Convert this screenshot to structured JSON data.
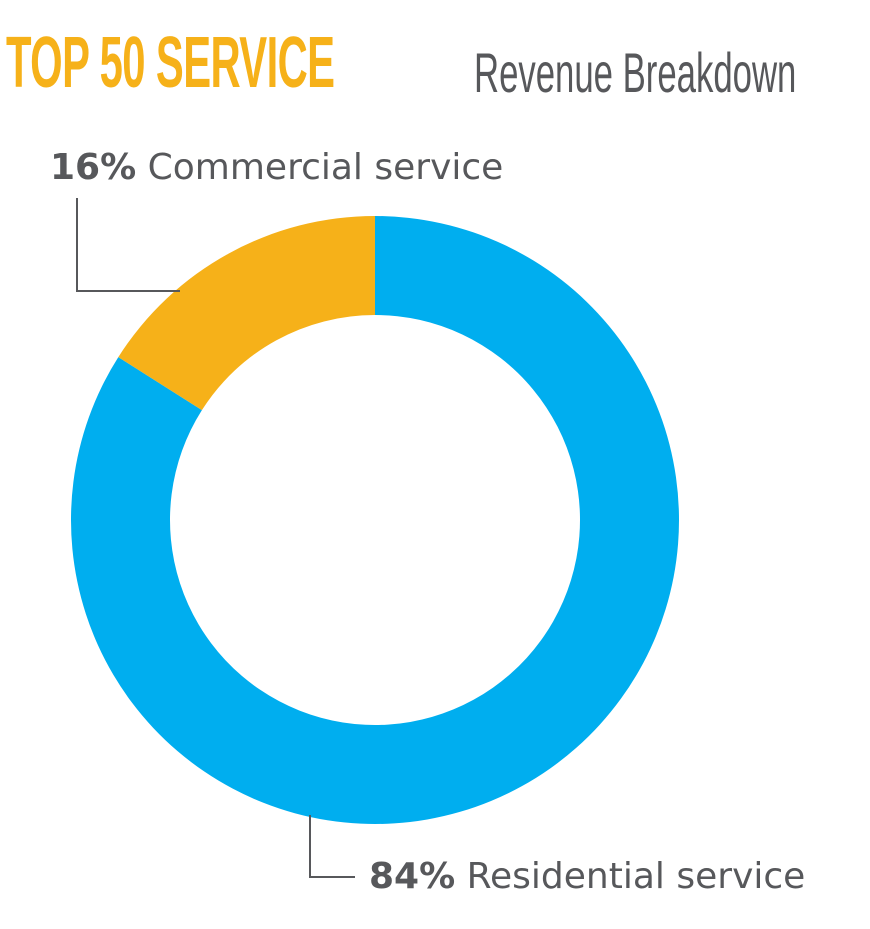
{
  "header": {
    "title_main": "TOP 50 SERVICE",
    "title_sub": "Revenue Breakdown"
  },
  "labels": {
    "commercial": {
      "pct": "16%",
      "name": " Commercial service"
    },
    "residential": {
      "pct": "84%",
      "name": " Residential service"
    }
  },
  "chart_data": {
    "type": "pie",
    "donut": true,
    "title": "TOP 50 SERVICE Revenue Breakdown",
    "slices": [
      {
        "label": "Residential service",
        "value": 84,
        "color": "#00aeef"
      },
      {
        "label": "Commercial service",
        "value": 16,
        "color": "#f6b119"
      }
    ],
    "units": "%",
    "legend": "callout labels"
  }
}
